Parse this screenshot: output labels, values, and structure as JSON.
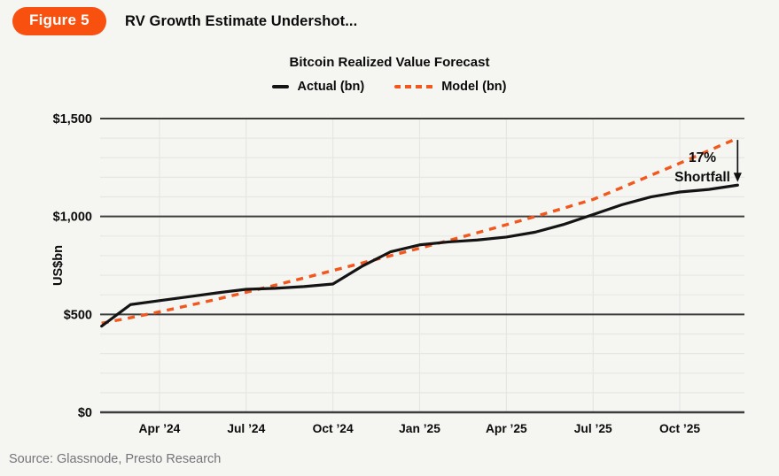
{
  "header": {
    "badge": "Figure 5",
    "title": "RV Growth Estimate Undershot..."
  },
  "annotation": {
    "line1": "17%",
    "line2": "Shortfall"
  },
  "y_axis_title": "US$bn",
  "source": "Source: Glassnode, Presto Research",
  "colors": {
    "badge": "#f8500f",
    "accent_orange": "#f2571d",
    "actual_line": "#141414",
    "grid_major": "#3d3d3d",
    "grid_minor": "#e6e6e2",
    "background": "#f5f5f2",
    "text": "#0b0b0b",
    "source_text": "#74747a"
  },
  "chart_data": {
    "type": "line",
    "title": "Bitcoin Realized Value Forecast",
    "xlabel": "",
    "ylabel": "US$bn",
    "ylim": [
      0,
      1500
    ],
    "grid": "horizontal-major-dark, minor-light-every-100, vertical-at-quarters",
    "legend_position": "top-center",
    "y_ticks": [
      0,
      500,
      1000,
      1500
    ],
    "y_tick_labels": [
      "$0",
      "$500",
      "$1,000",
      "$1,500"
    ],
    "x_tick_labels": [
      "Apr ’24",
      "Jul ’24",
      "Oct ’24",
      "Jan ’25",
      "Apr ’25",
      "Jul ’25",
      "Oct ’25"
    ],
    "x_tick_indices": [
      2,
      5,
      8,
      11,
      14,
      17,
      20
    ],
    "categories": [
      "Feb ’24",
      "Mar ’24",
      "Apr ’24",
      "May ’24",
      "Jun ’24",
      "Jul ’24",
      "Aug ’24",
      "Sep ’24",
      "Oct ’24",
      "Nov ’24",
      "Dec ’24",
      "Jan ’25",
      "Feb ’25",
      "Mar ’25",
      "Apr ’25",
      "May ’25",
      "Jun ’25",
      "Jul ’25",
      "Aug ’25",
      "Sep ’25",
      "Oct ’25",
      "Nov ’25",
      "Dec ’25"
    ],
    "series": [
      {
        "name": "Actual (bn)",
        "style": "solid",
        "color": "#141414",
        "values": [
          440,
          550,
          570,
          590,
          610,
          628,
          633,
          642,
          655,
          745,
          820,
          855,
          870,
          880,
          895,
          920,
          960,
          1010,
          1060,
          1100,
          1125,
          1138,
          1160
        ]
      },
      {
        "name": "Model (bn)",
        "style": "dashed",
        "color": "#f2571d",
        "values": [
          455,
          483,
          513,
          545,
          578,
          613,
          649,
          686,
          724,
          762,
          800,
          838,
          877,
          917,
          958,
          1000,
          1043,
          1087,
          1148,
          1210,
          1272,
          1336,
          1400
        ]
      }
    ],
    "annotation": {
      "text": "17% Shortfall",
      "arrow_from_series": "Model (bn)",
      "arrow_to_series": "Actual (bn)",
      "at_category": "Dec ’25"
    }
  }
}
